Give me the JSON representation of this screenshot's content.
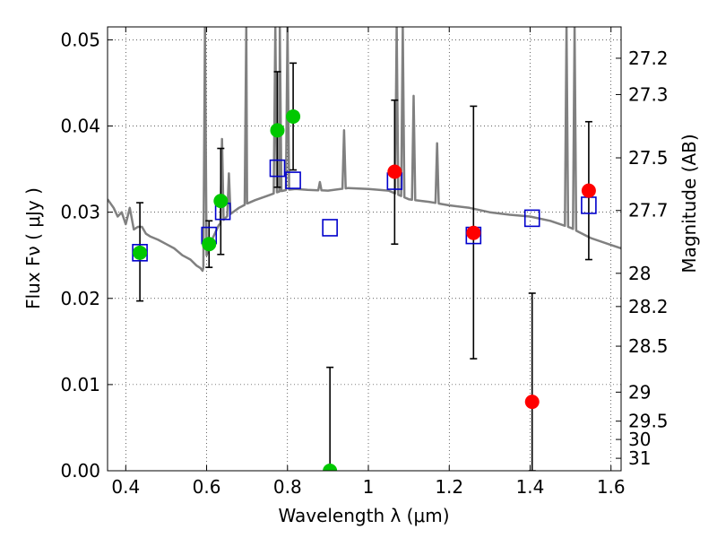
{
  "chart_data": {
    "type": "scatter",
    "title": "",
    "xlabel": "Wavelength  λ (μm)",
    "ylabel": "Flux  Fν  ( μJy )",
    "y2label": "Magnitude (AB)",
    "xlim": [
      0.355,
      1.625
    ],
    "ylim": [
      0.0,
      0.0515
    ],
    "grid": true,
    "x_ticks": [
      0.4,
      0.6,
      0.8,
      1,
      1.2,
      1.4,
      1.6
    ],
    "x_tick_labels": [
      "0.4",
      "0.6",
      "0.8",
      "1",
      "1.2",
      "1.4",
      "1.6"
    ],
    "y_ticks": [
      0.0,
      0.01,
      0.02,
      0.03,
      0.04,
      0.05
    ],
    "y_tick_labels": [
      "0.00",
      "0.01",
      "0.02",
      "0.03",
      "0.04",
      "0.05"
    ],
    "mag_ticks": [
      27.2,
      27.3,
      27.5,
      27.7,
      28,
      28.2,
      28.5,
      29,
      29.5,
      30,
      31
    ],
    "mag_tick_labels": [
      "27.2",
      "27.3",
      "27.5",
      "27.7",
      "28",
      "28.2",
      "28.5",
      "29",
      "29.5",
      "30",
      "31"
    ],
    "colors": {
      "model": "#808080",
      "model_photometry": "#0000cc",
      "optical": "#00c800",
      "nir": "#ff0000",
      "errorbar": "#000000"
    },
    "series": [
      {
        "kind": "optical",
        "points": [
          {
            "x": 0.435,
            "y": 0.0253,
            "ylo": 0.0197,
            "yhi": 0.0311
          },
          {
            "x": 0.606,
            "y": 0.0263,
            "ylo": 0.0236,
            "yhi": 0.029
          },
          {
            "x": 0.635,
            "y": 0.0313,
            "ylo": 0.0251,
            "yhi": 0.0374
          },
          {
            "x": 0.775,
            "y": 0.0395,
            "ylo": 0.0329,
            "yhi": 0.0463
          },
          {
            "x": 0.814,
            "y": 0.0411,
            "ylo": 0.0349,
            "yhi": 0.0473
          },
          {
            "x": 0.905,
            "y": 0.0,
            "ylo": 0.0,
            "yhi": 0.012
          }
        ]
      },
      {
        "kind": "nir",
        "points": [
          {
            "x": 1.065,
            "y": 0.0347,
            "ylo": 0.0263,
            "yhi": 0.043
          },
          {
            "x": 1.26,
            "y": 0.0276,
            "ylo": 0.013,
            "yhi": 0.0423
          },
          {
            "x": 1.405,
            "y": 0.008,
            "ylo": 0.0,
            "yhi": 0.0206
          },
          {
            "x": 1.545,
            "y": 0.0325,
            "ylo": 0.0245,
            "yhi": 0.0405
          }
        ]
      },
      {
        "kind": "model_photometry",
        "points": [
          {
            "x": 0.435,
            "y": 0.0253
          },
          {
            "x": 0.606,
            "y": 0.0273
          },
          {
            "x": 0.64,
            "y": 0.0301
          },
          {
            "x": 0.775,
            "y": 0.0351
          },
          {
            "x": 0.814,
            "y": 0.0337
          },
          {
            "x": 0.905,
            "y": 0.0282
          },
          {
            "x": 1.065,
            "y": 0.0336
          },
          {
            "x": 1.26,
            "y": 0.0273
          },
          {
            "x": 1.405,
            "y": 0.0293
          },
          {
            "x": 1.545,
            "y": 0.0308
          }
        ]
      }
    ],
    "model_spectrum": {
      "x": [
        0.355,
        0.37,
        0.38,
        0.39,
        0.4,
        0.41,
        0.42,
        0.43,
        0.44,
        0.45,
        0.46,
        0.48,
        0.5,
        0.52,
        0.54,
        0.56,
        0.575,
        0.585,
        0.59,
        0.6,
        0.61,
        0.63,
        0.65,
        0.68,
        0.7,
        0.72,
        0.75,
        0.78,
        0.8,
        0.82,
        0.85,
        0.9,
        0.95,
        1.0,
        1.05,
        1.1,
        1.15,
        1.2,
        1.25,
        1.3,
        1.35,
        1.4,
        1.45,
        1.5,
        1.55,
        1.6,
        1.625
      ],
      "y": [
        0.0315,
        0.0305,
        0.0295,
        0.03,
        0.0286,
        0.0305,
        0.028,
        0.0283,
        0.0283,
        0.0275,
        0.0272,
        0.0268,
        0.0263,
        0.0258,
        0.025,
        0.0245,
        0.0238,
        0.0235,
        0.0232,
        0.025,
        0.0265,
        0.0285,
        0.0295,
        0.0305,
        0.031,
        0.0314,
        0.0319,
        0.0324,
        0.0326,
        0.0327,
        0.0326,
        0.0325,
        0.0328,
        0.0327,
        0.0325,
        0.0315,
        0.0312,
        0.0308,
        0.0305,
        0.03,
        0.0297,
        0.0295,
        0.029,
        0.0282,
        0.027,
        0.0262,
        0.0258
      ],
      "lines": [
        {
          "x": 0.596,
          "peak": 0.0515
        },
        {
          "x": 0.638,
          "peak": 0.0385
        },
        {
          "x": 0.655,
          "peak": 0.0345
        },
        {
          "x": 0.698,
          "peak": 0.0515
        },
        {
          "x": 0.77,
          "peak": 0.0515
        },
        {
          "x": 0.781,
          "peak": 0.0515
        },
        {
          "x": 0.8,
          "peak": 0.0515
        },
        {
          "x": 0.88,
          "peak": 0.0335
        },
        {
          "x": 0.94,
          "peak": 0.0395
        },
        {
          "x": 1.07,
          "peak": 0.0515
        },
        {
          "x": 1.085,
          "peak": 0.0515
        },
        {
          "x": 1.112,
          "peak": 0.0435
        },
        {
          "x": 1.17,
          "peak": 0.038
        },
        {
          "x": 1.49,
          "peak": 0.0515
        },
        {
          "x": 1.51,
          "peak": 0.0515
        }
      ]
    }
  }
}
